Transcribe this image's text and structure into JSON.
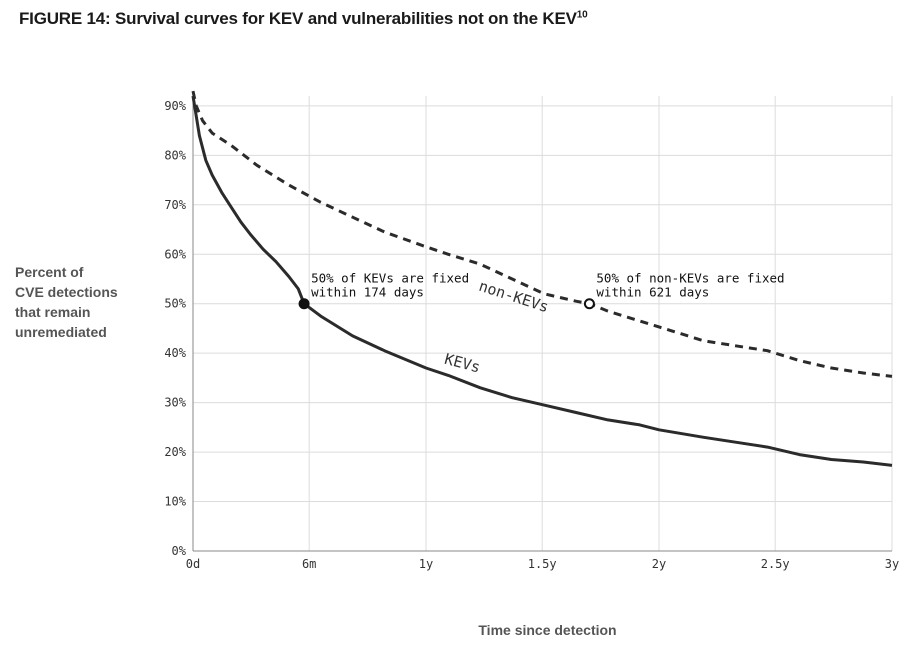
{
  "figure": {
    "title": "FIGURE 14: Survival curves for KEV and vulnerabilities not on the KEV",
    "title_superscript": "10"
  },
  "chart_data": {
    "type": "line",
    "title": "FIGURE 14: Survival curves for KEV and vulnerabilities not on the KEV10",
    "ylabel_lines": [
      "Percent of",
      "CVE detections",
      "that remain",
      "unremediated"
    ],
    "xlabel": "Time since detection",
    "xlim": [
      0,
      1095
    ],
    "ylim": [
      0,
      92
    ],
    "grid": true,
    "x_ticks": [
      {
        "value": 0,
        "label": "0d"
      },
      {
        "value": 182,
        "label": "6m"
      },
      {
        "value": 365,
        "label": "1y"
      },
      {
        "value": 547,
        "label": "1.5y"
      },
      {
        "value": 730,
        "label": "2y"
      },
      {
        "value": 912,
        "label": "2.5y"
      },
      {
        "value": 1095,
        "label": "3y"
      }
    ],
    "y_ticks": [
      {
        "value": 0,
        "label": "0%"
      },
      {
        "value": 10,
        "label": "10%"
      },
      {
        "value": 20,
        "label": "20%"
      },
      {
        "value": 30,
        "label": "30%"
      },
      {
        "value": 40,
        "label": "40%"
      },
      {
        "value": 50,
        "label": "50%"
      },
      {
        "value": 60,
        "label": "60%"
      },
      {
        "value": 70,
        "label": "70%"
      },
      {
        "value": 80,
        "label": "80%"
      },
      {
        "value": 90,
        "label": "90%"
      }
    ],
    "series": [
      {
        "name": "KEVs",
        "style": "solid",
        "color": "#2b2b2b",
        "x": [
          0,
          5,
          10,
          20,
          30,
          45,
          60,
          75,
          90,
          110,
          130,
          150,
          165,
          174,
          200,
          250,
          300,
          365,
          400,
          450,
          500,
          550,
          600,
          650,
          700,
          730,
          800,
          850,
          900,
          950,
          1000,
          1050,
          1095
        ],
        "y": [
          92,
          88,
          84,
          79,
          76,
          72.5,
          69.5,
          66.5,
          64,
          61,
          58.5,
          55.5,
          53,
          50,
          47.5,
          43.5,
          40.5,
          37,
          35.5,
          33,
          31,
          29.5,
          28,
          26.5,
          25.5,
          24.5,
          23,
          22,
          21,
          19.5,
          18.5,
          18,
          17.3
        ]
      },
      {
        "name": "non-KEVs",
        "style": "dashed",
        "color": "#2b2b2b",
        "x": [
          0,
          5,
          15,
          30,
          60,
          100,
          150,
          200,
          250,
          300,
          365,
          400,
          450,
          500,
          550,
          600,
          621,
          650,
          700,
          750,
          800,
          850,
          900,
          950,
          1000,
          1050,
          1095
        ],
        "y": [
          93,
          90,
          87,
          84.5,
          82,
          78,
          74,
          70.5,
          67.5,
          64.5,
          61.5,
          60,
          58,
          55,
          52,
          50.5,
          50,
          48.5,
          46.5,
          44.5,
          42.5,
          41.5,
          40.5,
          38.5,
          37,
          36,
          35.3
        ]
      }
    ],
    "annotations": [
      {
        "series": "KEVs",
        "x": 174,
        "y": 50,
        "marker": "filled",
        "line1": "50% of KEVs are fixed",
        "line2": "within 174 days"
      },
      {
        "series": "non-KEVs",
        "x": 621,
        "y": 50,
        "marker": "hollow",
        "line1": "50% of non-KEVs are fixed",
        "line2": "within 621 days"
      }
    ],
    "series_labels": [
      {
        "text": "KEVs",
        "x": 420,
        "y": 37,
        "rotate": 15
      },
      {
        "text": "non-KEVs",
        "x": 500,
        "y": 50.5,
        "rotate": 18
      }
    ]
  }
}
